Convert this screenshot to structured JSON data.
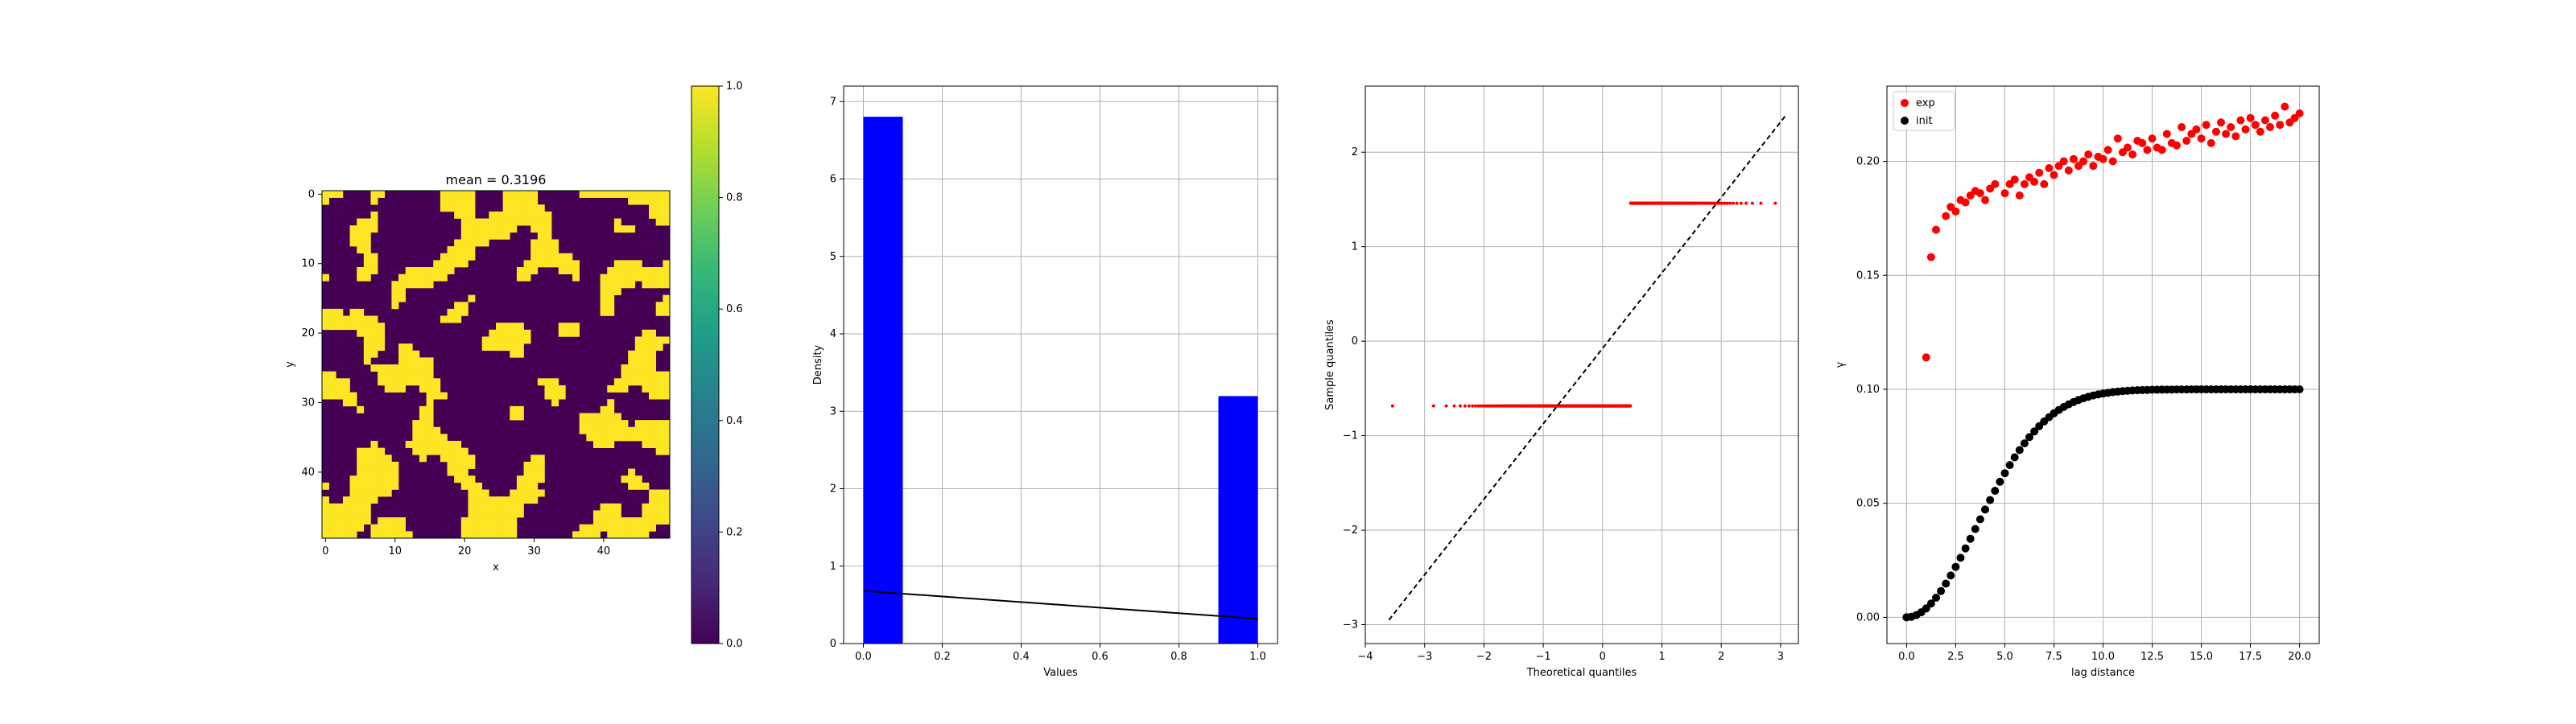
{
  "chart_data": [
    {
      "type": "heatmap",
      "title": "mean = 0.3196",
      "xlabel": "x",
      "ylabel": "y",
      "xticks": [
        "0",
        "10",
        "20",
        "30",
        "40"
      ],
      "yticks": [
        "0",
        "10",
        "20",
        "30",
        "40"
      ],
      "xlim": [
        -0.5,
        49.5
      ],
      "ylim": [
        49.5,
        -0.5
      ],
      "grid_size": [
        50,
        50
      ],
      "mean": 0.3196,
      "values": "binary field: 0 (dark purple) / 1 (yellow)",
      "colormap": "viridis",
      "colorbar": {
        "range": [
          0.0,
          1.0
        ],
        "ticks": [
          "0.0",
          "0.2",
          "0.4",
          "0.6",
          "0.8",
          "1.0"
        ]
      },
      "colors": {
        "low": "#440154",
        "high": "#fde725"
      }
    },
    {
      "type": "bar",
      "xlabel": "Values",
      "ylabel": "Density",
      "xlim": [
        -0.05,
        1.05
      ],
      "ylim": [
        0,
        7.2
      ],
      "xticks": [
        "0.0",
        "0.2",
        "0.4",
        "0.6",
        "0.8",
        "1.0"
      ],
      "yticks": [
        "0",
        "1",
        "2",
        "3",
        "4",
        "5",
        "6",
        "7"
      ],
      "grid": true,
      "bars": [
        {
          "x0": 0.0,
          "x1": 0.1,
          "value": 6.804
        },
        {
          "x0": 0.9,
          "x1": 1.0,
          "value": 3.196
        }
      ],
      "line": {
        "x": [
          0.0,
          1.0
        ],
        "y": [
          0.68,
          0.32
        ]
      },
      "colors": {
        "bar": "#0000ff",
        "line": "#000000"
      }
    },
    {
      "type": "scatter",
      "xlabel": "Theoretical quantiles",
      "ylabel": "Sample quantiles",
      "xlim": [
        -4,
        3.3
      ],
      "ylim": [
        -3.2,
        2.7
      ],
      "xticks": [
        -4,
        -3,
        -2,
        -1,
        0,
        1,
        2,
        3
      ],
      "yticks": [
        -3,
        -2,
        -1,
        0,
        1,
        2
      ],
      "xtick_labels": [
        "−4",
        "−3",
        "−2",
        "−1",
        "0",
        "1",
        "2",
        "3"
      ],
      "ytick_labels": [
        "−3",
        "−2",
        "−1",
        "0",
        "1",
        "2"
      ],
      "grid": true,
      "series": [
        {
          "x_range": [
            -3.6,
            0.47
          ],
          "y": -0.685
        },
        {
          "x_range": [
            0.47,
            3.1
          ],
          "y": 1.46
        }
      ],
      "reference_line": {
        "x": [
          -3.6,
          3.1
        ],
        "y": [
          -2.95,
          2.4
        ],
        "style": "dashed"
      },
      "colors": {
        "points": "#ff0000",
        "line": "#000000"
      }
    },
    {
      "type": "scatter",
      "xlabel": "lag distance",
      "ylabel": "γ",
      "xlim": [
        -1,
        21
      ],
      "ylim": [
        -0.0115,
        0.233
      ],
      "xticks": [
        0.0,
        2.5,
        5.0,
        7.5,
        10.0,
        12.5,
        15.0,
        17.5,
        20.0
      ],
      "xtick_labels": [
        "0.0",
        "2.5",
        "5.0",
        "7.5",
        "10.0",
        "12.5",
        "15.0",
        "17.5",
        "20.0"
      ],
      "yticks": [
        0.0,
        0.05,
        0.1,
        0.15,
        0.2
      ],
      "ytick_labels": [
        "0.00",
        "0.05",
        "0.10",
        "0.15",
        "0.20"
      ],
      "grid": true,
      "legend": {
        "position": "upper-left",
        "entries": [
          "exp",
          "init"
        ]
      },
      "series": [
        {
          "name": "exp",
          "color": "#ff0000",
          "x": [
            0.0,
            1.0,
            1.25,
            1.5,
            2.0,
            2.25,
            2.5,
            2.75,
            3.0,
            3.25,
            3.5,
            3.75,
            4.0,
            4.25,
            4.5,
            5.0,
            5.25,
            5.5,
            5.75,
            6.0,
            6.25,
            6.5,
            6.75,
            7.0,
            7.25,
            7.5,
            7.75,
            8.0,
            8.25,
            8.5,
            8.75,
            9.0,
            9.25,
            9.5,
            9.75,
            10.0,
            10.25,
            10.5,
            10.75,
            11.0,
            11.25,
            11.5,
            11.75,
            12.0,
            12.25,
            12.5,
            12.75,
            13.0,
            13.25,
            13.5,
            13.75,
            14.0,
            14.25,
            14.5,
            14.75,
            15.0,
            15.25,
            15.5,
            15.75,
            16.0,
            16.25,
            16.5,
            16.75,
            17.0,
            17.25,
            17.5,
            17.75,
            18.0,
            18.25,
            18.5,
            18.75,
            19.0,
            19.25,
            19.5,
            19.75,
            20.0
          ],
          "y": [
            0.0,
            0.114,
            0.158,
            0.17,
            0.176,
            0.18,
            0.178,
            0.183,
            0.182,
            0.185,
            0.187,
            0.186,
            0.183,
            0.188,
            0.19,
            0.186,
            0.19,
            0.192,
            0.185,
            0.19,
            0.193,
            0.191,
            0.195,
            0.19,
            0.197,
            0.194,
            0.198,
            0.2,
            0.196,
            0.201,
            0.198,
            0.2,
            0.203,
            0.198,
            0.202,
            0.201,
            0.205,
            0.2,
            0.21,
            0.204,
            0.206,
            0.203,
            0.209,
            0.208,
            0.205,
            0.21,
            0.206,
            0.205,
            0.212,
            0.208,
            0.207,
            0.215,
            0.209,
            0.212,
            0.214,
            0.21,
            0.216,
            0.208,
            0.213,
            0.217,
            0.212,
            0.215,
            0.211,
            0.218,
            0.214,
            0.219,
            0.216,
            0.213,
            0.218,
            0.215,
            0.22,
            0.216,
            0.224,
            0.217,
            0.219,
            0.221
          ]
        },
        {
          "name": "init",
          "color": "#000000",
          "curve": "gaussian",
          "sill": 0.1,
          "range": 5.0,
          "x_step": 0.25,
          "x_range": [
            0.0,
            20.0
          ]
        }
      ]
    }
  ]
}
